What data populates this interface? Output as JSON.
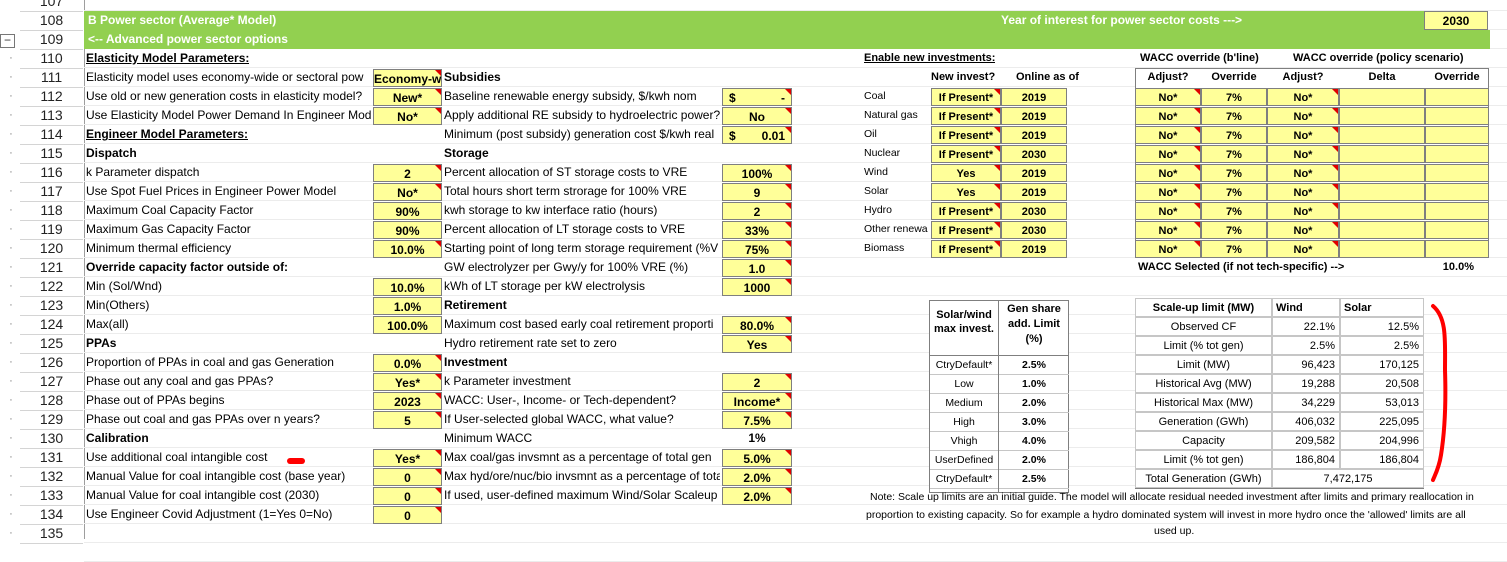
{
  "rows": [
    "107",
    "108",
    "109",
    "110",
    "111",
    "112",
    "113",
    "114",
    "115",
    "116",
    "117",
    "118",
    "119",
    "120",
    "121",
    "122",
    "123",
    "124",
    "125",
    "126",
    "127",
    "128",
    "129",
    "130",
    "131",
    "132",
    "133",
    "134",
    "135"
  ],
  "header": {
    "section_title": "B  Power sector (Average* Model)",
    "year_label": "Year of interest for power sector costs --->",
    "year_value": "2030",
    "advanced_link": "<-- Advanced power sector options"
  },
  "col1": {
    "elasticity_heading": "Elasticity Model Parameters:",
    "elasticity_items": [
      {
        "label": "Elasticity model uses economy-wide or sectoral pow",
        "value": "Economy-w"
      },
      {
        "label": "Use old or new generation costs in elasticity model?",
        "value": "New*"
      },
      {
        "label": "Use Elasticity Model Power Demand In Engineer Mod",
        "value": "No*"
      }
    ],
    "engineer_heading": "Engineer Model Parameters:",
    "dispatch_heading": "Dispatch",
    "dispatch_items": [
      {
        "label": "k Parameter dispatch",
        "value": "2"
      },
      {
        "label": "Use Spot Fuel Prices in Engineer Power Model",
        "value": "No*"
      },
      {
        "label": "Maximum Coal Capacity Factor",
        "value": "90%"
      },
      {
        "label": "Maximum Gas Capacity Factor",
        "value": "90%"
      },
      {
        "label": "Minimum thermal efficiency",
        "value": "10.0%"
      }
    ],
    "override_heading": "Override capacity factor outside of:",
    "override_items": [
      {
        "label": "Min (Sol/Wnd)",
        "value": "10.0%"
      },
      {
        "label": "Min(Others)",
        "value": "1.0%"
      },
      {
        "label": "Max(all)",
        "value": "100.0%"
      }
    ],
    "ppas_heading": "PPAs",
    "ppas_items": [
      {
        "label": "Proportion of PPAs in coal and gas Generation",
        "value": "0.0%"
      },
      {
        "label": "Phase out any coal and gas PPAs?",
        "value": "Yes*"
      },
      {
        "label": "Phase out of PPAs begins",
        "value": "2023"
      },
      {
        "label": "Phase out coal and gas PPAs over n years?",
        "value": "5"
      }
    ],
    "calibration_heading": "Calibration",
    "calibration_items": [
      {
        "label": "Use additional coal intangible cost",
        "value": "Yes*"
      },
      {
        "label": "Manual Value for coal intangible cost (base year)",
        "value": "0"
      },
      {
        "label": "Manual Value for coal intangible cost (2030)",
        "value": "0"
      },
      {
        "label": "Use Engineer Covid Adjustment (1=Yes 0=No)",
        "value": "0"
      }
    ]
  },
  "col2": {
    "subsidies_heading": "Subsidies",
    "subsidies_items": [
      {
        "label": "Baseline renewable energy subsidy, $/kwh nom",
        "cur": "$",
        "value": "-"
      },
      {
        "label": "Apply additional RE subsidy to hydroelectric power?",
        "cur": "",
        "value": "No"
      },
      {
        "label": "Minimum (post subsidy) generation cost $/kwh real",
        "cur": "$",
        "value": "0.01"
      }
    ],
    "storage_heading": "Storage",
    "storage_items": [
      {
        "label": "Percent allocation of ST storage costs to VRE",
        "value": "100%"
      },
      {
        "label": "Total hours short term strorage for 100% VRE",
        "value": "9"
      },
      {
        "label": "kwh storage to kw interface ratio (hours)",
        "value": "2"
      },
      {
        "label": "Percent allocation of LT storage costs to VRE",
        "value": "33%"
      },
      {
        "label": "Starting point of long term storage requirement (%V",
        "value": "75%"
      },
      {
        "label": "GW electrolyzer per Gwy/y for 100% VRE (%)",
        "value": "1.0"
      },
      {
        "label": "kWh of LT storage per kW electrolysis",
        "value": "1000"
      }
    ],
    "retirement_heading": "Retirement",
    "retirement_items": [
      {
        "label": "Maximum cost based early coal retirement proporti",
        "value": "80.0%"
      },
      {
        "label": "Hydro retirement rate set to zero",
        "value": "Yes"
      }
    ],
    "investment_heading": "Investment",
    "investment_items": [
      {
        "label": "k Parameter investment",
        "value": "2"
      },
      {
        "label": "WACC: User-, Income- or Tech-dependent?",
        "value": "Income*"
      },
      {
        "label": "If User-selected global WACC, what value?",
        "value": "7.5%"
      },
      {
        "label": "Minimum WACC",
        "value": "1%"
      },
      {
        "label": "Max coal/gas invsmnt as a percentage of total gen",
        "value": "5.0%"
      },
      {
        "label": "Max hyd/ore/nuc/bio invsmnt as a percentage of tota",
        "value": "2.0%"
      },
      {
        "label": "If used, user-defined maximum Wind/Solar Scaleup",
        "value": "2.0%"
      }
    ]
  },
  "investments": {
    "heading": "Enable new investments:",
    "col_new": "New invest?",
    "col_online": "Online as of",
    "rows": [
      {
        "tech": "Coal",
        "invest": "If Present*",
        "online": "2019"
      },
      {
        "tech": "Natural gas",
        "invest": "If Present*",
        "online": "2019"
      },
      {
        "tech": "Oil",
        "invest": "If Present*",
        "online": "2019"
      },
      {
        "tech": "Nuclear",
        "invest": "If Present*",
        "online": "2030"
      },
      {
        "tech": "Wind",
        "invest": "Yes",
        "online": "2019"
      },
      {
        "tech": "Solar",
        "invest": "Yes",
        "online": "2019"
      },
      {
        "tech": "Hydro",
        "invest": "If Present*",
        "online": "2030"
      },
      {
        "tech": "Other renewa",
        "invest": "If Present*",
        "online": "2030"
      },
      {
        "tech": "Biomass",
        "invest": "If Present*",
        "online": "2019"
      }
    ]
  },
  "wacc": {
    "baseline_heading": "WACC override (b'line)",
    "policy_heading": "WACC override (policy scenario)",
    "col_adjust": "Adjust?",
    "col_override": "Override",
    "col_adjust2": "Adjust?",
    "col_delta": "Delta",
    "col_override2": "Override",
    "rows": [
      {
        "adjust": "No*",
        "override": "7%",
        "adjust2": "No*"
      },
      {
        "adjust": "No*",
        "override": "7%",
        "adjust2": "No*"
      },
      {
        "adjust": "No*",
        "override": "7%",
        "adjust2": "No*"
      },
      {
        "adjust": "No*",
        "override": "7%",
        "adjust2": "No*"
      },
      {
        "adjust": "No*",
        "override": "7%",
        "adjust2": "No*"
      },
      {
        "adjust": "No*",
        "override": "7%",
        "adjust2": "No*"
      },
      {
        "adjust": "No*",
        "override": "7%",
        "adjust2": "No*"
      },
      {
        "adjust": "No*",
        "override": "7%",
        "adjust2": "No*"
      },
      {
        "adjust": "No*",
        "override": "7%",
        "adjust2": "No*"
      }
    ],
    "selected_label": "WACC Selected (if not tech-specific) -->",
    "selected_value": "10.0%"
  },
  "solarwind": {
    "head1": "Solar/wind max invest.",
    "head2": "Gen share add. Limit (%)",
    "rows": [
      {
        "name": "CtryDefault*",
        "value": "2.5%"
      },
      {
        "name": "Low",
        "value": "1.0%"
      },
      {
        "name": "Medium",
        "value": "2.0%"
      },
      {
        "name": "High",
        "value": "3.0%"
      },
      {
        "name": "Vhigh",
        "value": "4.0%"
      },
      {
        "name": "UserDefined",
        "value": "2.0%"
      },
      {
        "name": "CtryDefault*",
        "value": "2.5%"
      }
    ]
  },
  "scaleup": {
    "head_label": "Scale-up limit (MW)",
    "head_wind": "Wind",
    "head_solar": "Solar",
    "rows": [
      {
        "label": "Observed CF",
        "wind": "22.1%",
        "solar": "12.5%"
      },
      {
        "label": "Limit (% tot gen)",
        "wind": "2.5%",
        "solar": "2.5%"
      },
      {
        "label": "Limit (MW)",
        "wind": "96,423",
        "solar": "170,125"
      },
      {
        "label": "Historical Avg (MW)",
        "wind": "19,288",
        "solar": "20,508"
      },
      {
        "label": "Historical Max (MW)",
        "wind": "34,229",
        "solar": "53,013"
      },
      {
        "label": "Generation (GWh)",
        "wind": "406,032",
        "solar": "225,095"
      },
      {
        "label": "Capacity",
        "wind": "209,582",
        "solar": "204,996"
      },
      {
        "label": "Limit (% tot gen)",
        "wind": "186,804",
        "solar": "186,804"
      }
    ],
    "total_label": "Total Generation (GWh)",
    "total_value": "7,472,175"
  },
  "note": {
    "line1": "Note: Scale up limits are an initial guide. The model will allocate residual needed investment after limits and primary reallocation in",
    "line2": "proportion to existing capacity. So for example a hydro dominated system will invest in more hydro once the 'allowed' limits are all",
    "line3": "used up."
  },
  "colors": {
    "section_green": "#92d050",
    "input_yellow": "#ffff99",
    "annotation_red": "#ff0000"
  }
}
